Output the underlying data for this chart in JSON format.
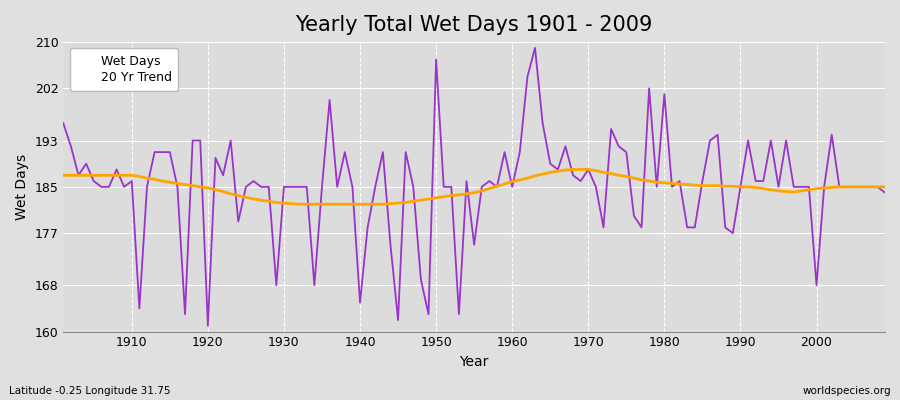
{
  "title": "Yearly Total Wet Days 1901 - 2009",
  "xlabel": "Year",
  "ylabel": "Wet Days",
  "subtitle_lat_lon": "Latitude -0.25 Longitude 31.75",
  "watermark": "worldspecies.org",
  "ylim": [
    160,
    210
  ],
  "yticks": [
    160,
    168,
    177,
    185,
    193,
    202,
    210
  ],
  "xticks": [
    1910,
    1920,
    1930,
    1940,
    1950,
    1960,
    1970,
    1980,
    1990,
    2000
  ],
  "xlim": [
    1901,
    2009
  ],
  "years": [
    1901,
    1902,
    1903,
    1904,
    1905,
    1906,
    1907,
    1908,
    1909,
    1910,
    1911,
    1912,
    1913,
    1914,
    1915,
    1916,
    1917,
    1918,
    1919,
    1920,
    1921,
    1922,
    1923,
    1924,
    1925,
    1926,
    1927,
    1928,
    1929,
    1930,
    1931,
    1932,
    1933,
    1934,
    1935,
    1936,
    1937,
    1938,
    1939,
    1940,
    1941,
    1942,
    1943,
    1944,
    1945,
    1946,
    1947,
    1948,
    1949,
    1950,
    1951,
    1952,
    1953,
    1954,
    1955,
    1956,
    1957,
    1958,
    1959,
    1960,
    1961,
    1962,
    1963,
    1964,
    1965,
    1966,
    1967,
    1968,
    1969,
    1970,
    1971,
    1972,
    1973,
    1974,
    1975,
    1976,
    1977,
    1978,
    1979,
    1980,
    1981,
    1982,
    1983,
    1984,
    1985,
    1986,
    1987,
    1988,
    1989,
    1990,
    1991,
    1992,
    1993,
    1994,
    1995,
    1996,
    1997,
    1998,
    1999,
    2000,
    2001,
    2002,
    2003,
    2004,
    2005,
    2006,
    2007,
    2008,
    2009
  ],
  "wet_days": [
    196,
    192,
    187,
    189,
    186,
    185,
    185,
    188,
    185,
    186,
    164,
    185,
    191,
    191,
    191,
    185,
    163,
    193,
    193,
    161,
    190,
    187,
    193,
    179,
    185,
    186,
    185,
    185,
    168,
    185,
    185,
    185,
    185,
    168,
    185,
    200,
    185,
    191,
    185,
    165,
    178,
    185,
    191,
    175,
    162,
    191,
    185,
    169,
    163,
    207,
    185,
    185,
    163,
    186,
    175,
    185,
    186,
    185,
    191,
    185,
    191,
    204,
    209,
    196,
    189,
    188,
    192,
    187,
    186,
    188,
    185,
    178,
    195,
    192,
    191,
    180,
    178,
    202,
    185,
    201,
    185,
    186,
    178,
    178,
    186,
    193,
    194,
    178,
    177,
    185,
    193,
    186,
    186,
    193,
    185,
    193,
    185,
    185,
    185,
    168,
    185,
    194,
    185,
    185,
    185,
    185,
    185,
    185,
    184
  ],
  "trend_values": [
    187.0,
    187.0,
    187.0,
    187.0,
    187.0,
    187.0,
    187.0,
    187.0,
    187.0,
    187.0,
    186.8,
    186.5,
    186.3,
    186.0,
    185.8,
    185.6,
    185.4,
    185.2,
    185.0,
    184.8,
    184.5,
    184.2,
    183.8,
    183.5,
    183.2,
    182.9,
    182.7,
    182.5,
    182.3,
    182.2,
    182.1,
    182.0,
    182.0,
    182.0,
    182.0,
    182.0,
    182.0,
    182.0,
    182.0,
    182.0,
    182.0,
    182.0,
    182.0,
    182.1,
    182.2,
    182.3,
    182.5,
    182.7,
    182.9,
    183.1,
    183.3,
    183.5,
    183.6,
    183.8,
    184.0,
    184.3,
    184.7,
    185.1,
    185.5,
    185.9,
    186.2,
    186.5,
    186.9,
    187.2,
    187.5,
    187.7,
    187.9,
    188.0,
    188.0,
    188.0,
    187.8,
    187.5,
    187.3,
    187.0,
    186.8,
    186.5,
    186.2,
    186.0,
    185.8,
    185.7,
    185.6,
    185.5,
    185.4,
    185.3,
    185.2,
    185.2,
    185.2,
    185.1,
    185.1,
    185.0,
    185.0,
    184.9,
    184.7,
    184.5,
    184.3,
    184.2,
    184.1,
    184.3,
    184.5,
    184.7,
    184.8,
    184.9,
    185.0,
    185.0,
    185.0,
    185.0,
    185.0,
    185.0,
    185.0
  ],
  "line_color": "#9933cc",
  "trend_color": "#ffa500",
  "fig_bg_color": "#e0e0e0",
  "plot_bg_color": "#dcdcdc",
  "grid_color": "#ffffff",
  "title_fontsize": 15,
  "label_fontsize": 10,
  "tick_fontsize": 9,
  "legend_fontsize": 9
}
